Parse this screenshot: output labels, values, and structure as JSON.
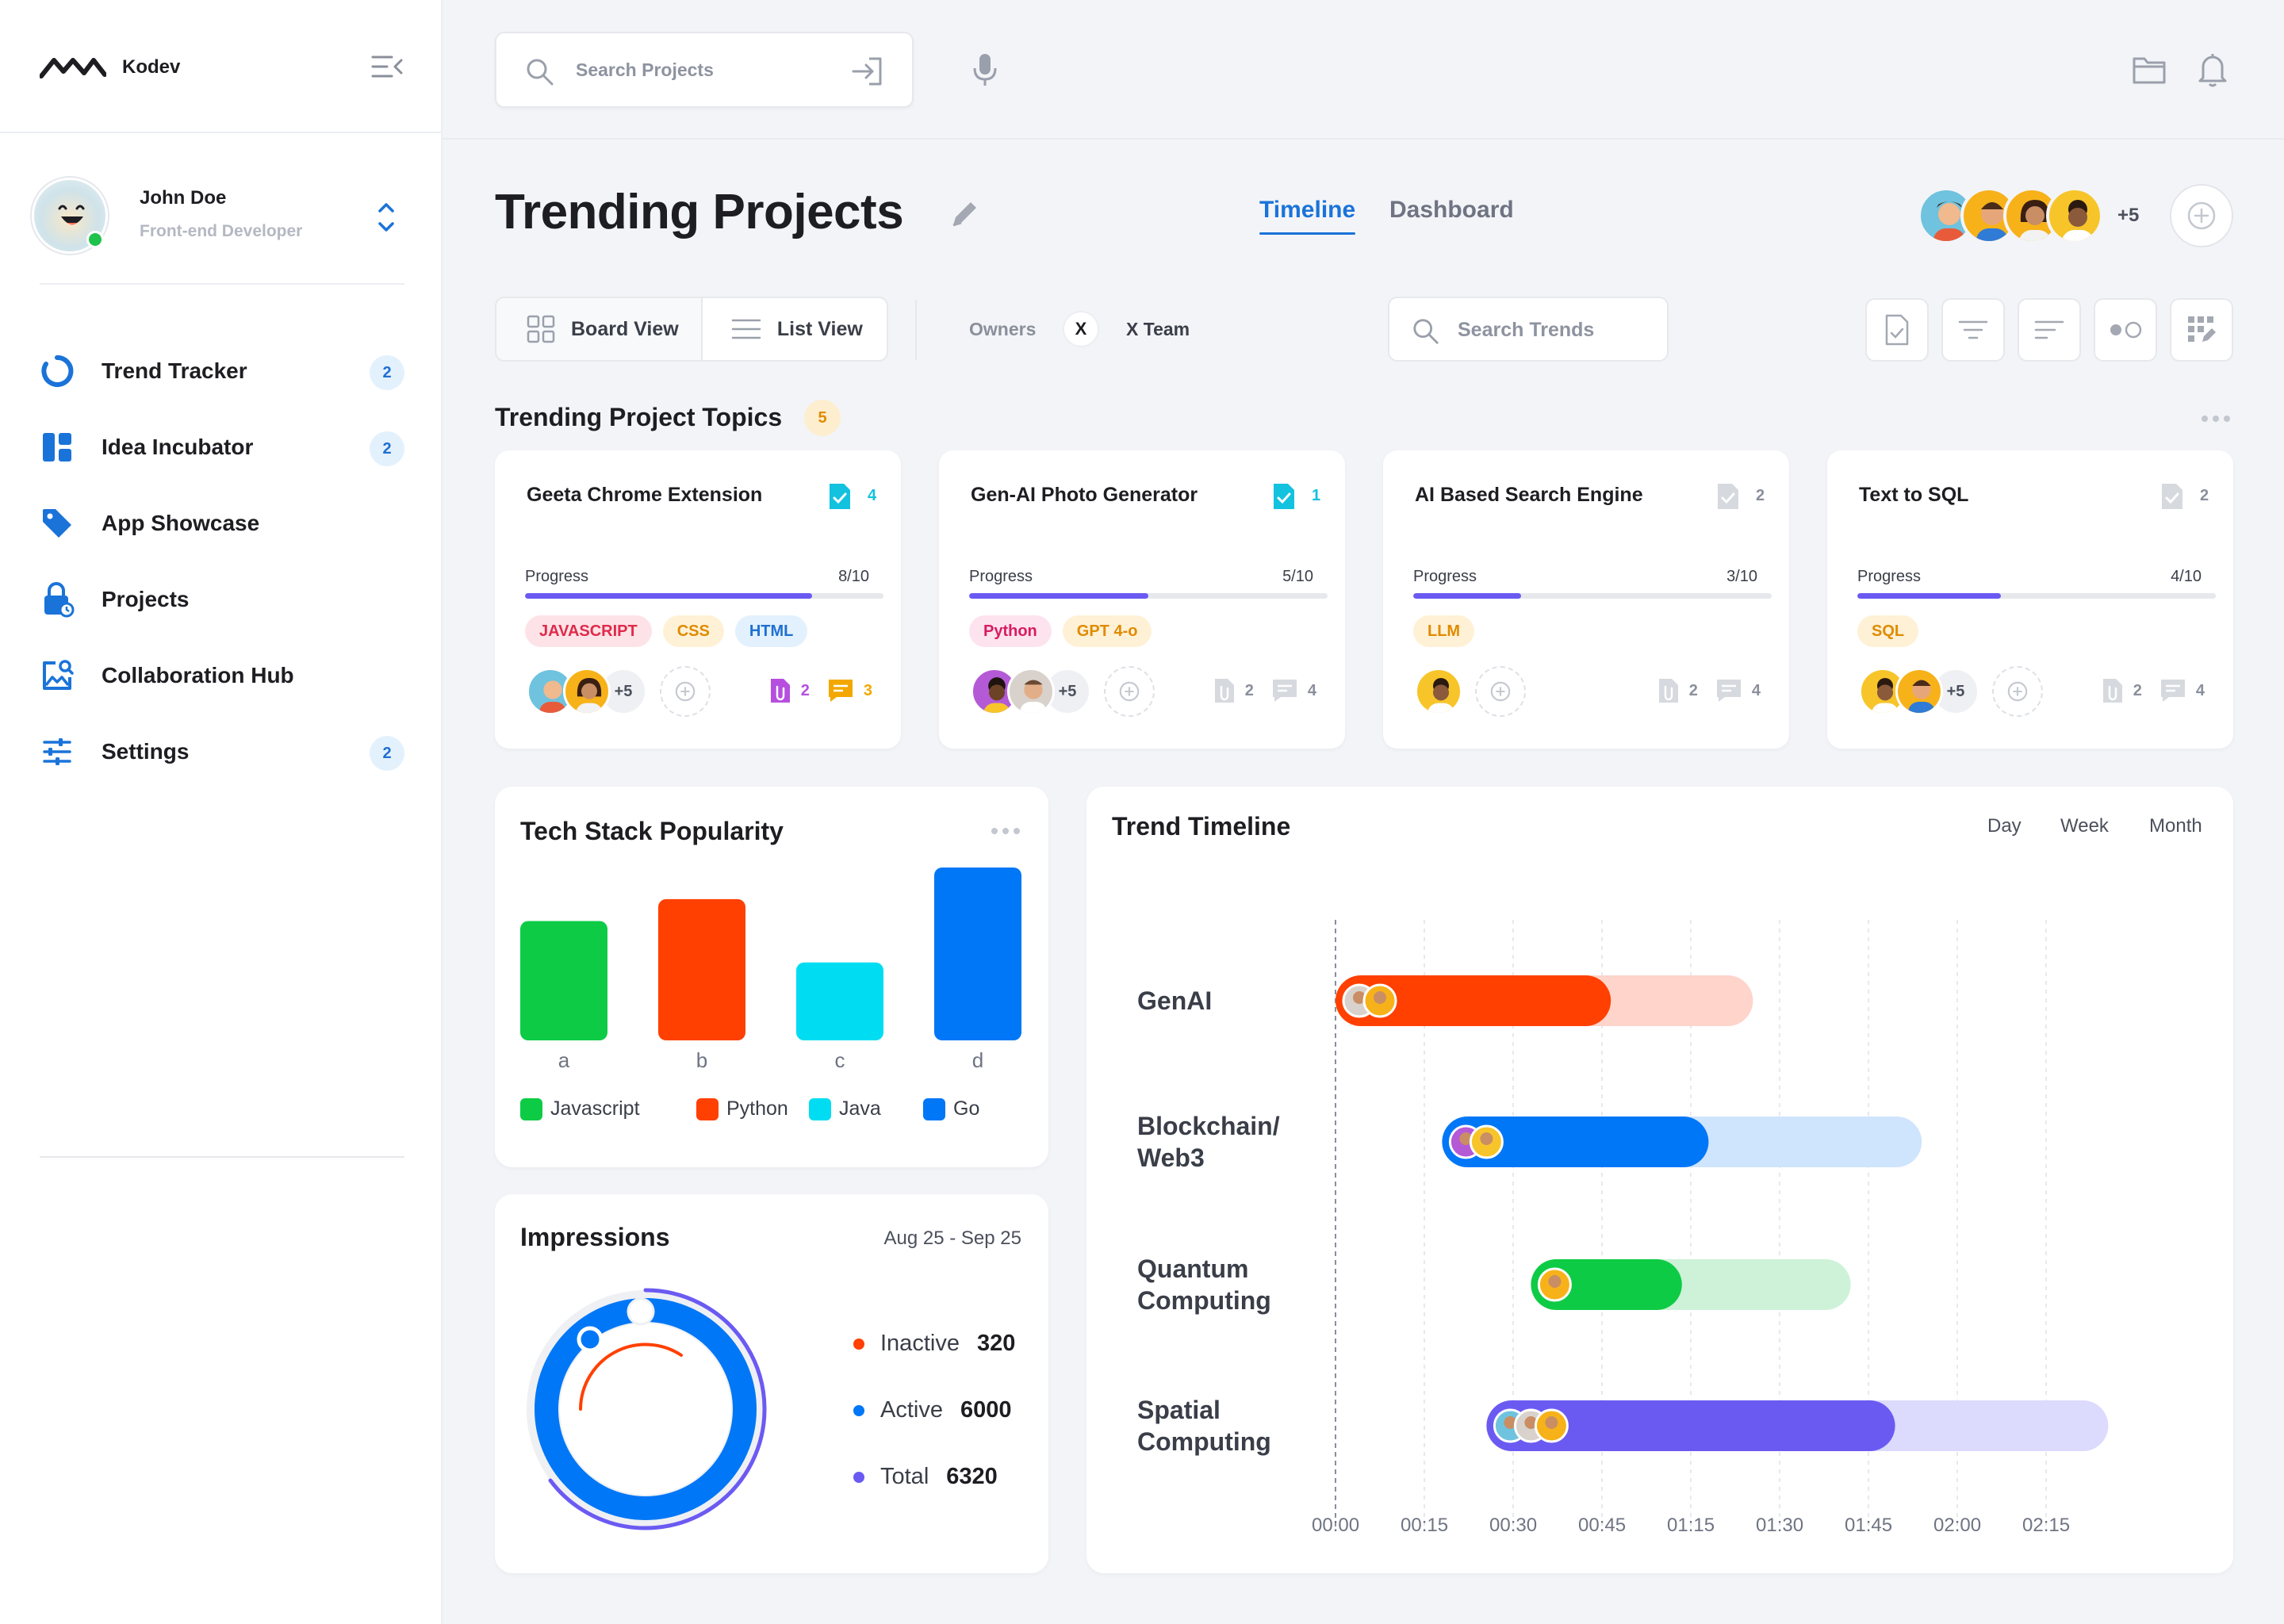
{
  "app": {
    "name": "Kodev"
  },
  "user": {
    "name": "John Doe",
    "role": "Front-end Developer"
  },
  "nav": [
    {
      "label": "Trend Tracker",
      "badge": "2",
      "icon": "refresh-icon"
    },
    {
      "label": "Idea Incubator",
      "badge": "2",
      "icon": "grid-icon"
    },
    {
      "label": "App Showcase",
      "badge": "",
      "icon": "tag-icon"
    },
    {
      "label": "Projects",
      "badge": "",
      "icon": "lock-icon"
    },
    {
      "label": "Collaboration Hub",
      "badge": "",
      "icon": "image-search-icon"
    },
    {
      "label": "Settings",
      "badge": "2",
      "icon": "sliders-icon"
    }
  ],
  "search": {
    "placeholder": "Search Projects"
  },
  "header": {
    "title": "Trending Projects",
    "tabs": [
      "Timeline",
      "Dashboard"
    ],
    "team_more": "+5"
  },
  "toolbar": {
    "board_view": "Board View",
    "list_view": "List View",
    "owners_label": "Owners",
    "owner_chip": "X",
    "owner_team": "X Team",
    "trend_search_placeholder": "Search Trends"
  },
  "topics": {
    "title": "Trending Project Topics",
    "count": "5",
    "cards": [
      {
        "title": "Geeta Chrome Extension",
        "docs": "4",
        "progress_label": "Progress",
        "progress": "8/10",
        "progress_fraction": 0.8,
        "tags": [
          "JAVASCRIPT",
          "CSS",
          "HTML"
        ],
        "more": "+5",
        "files": "2",
        "comments": "3",
        "highlight": true
      },
      {
        "title": "Gen-AI Photo Generator",
        "docs": "1",
        "progress_label": "Progress",
        "progress": "5/10",
        "progress_fraction": 0.5,
        "tags": [
          "Python",
          "GPT 4-o"
        ],
        "more": "+5",
        "files": "2",
        "comments": "4",
        "highlight": false
      },
      {
        "title": "AI Based Search Engine",
        "docs": "2",
        "progress_label": "Progress",
        "progress": "3/10",
        "progress_fraction": 0.3,
        "tags": [
          "LLM"
        ],
        "more": "",
        "files": "2",
        "comments": "4",
        "highlight": false
      },
      {
        "title": "Text to SQL",
        "docs": "2",
        "progress_label": "Progress",
        "progress": "4/10",
        "progress_fraction": 0.4,
        "tags": [
          "SQL"
        ],
        "more": "+5",
        "files": "2",
        "comments": "4",
        "highlight": false
      }
    ]
  },
  "colors": {
    "accent": "#1a73d9",
    "progress": "#6b5af2",
    "green": "#0ecb45",
    "orange": "#ff4000",
    "cyan": "#00ddf2",
    "blue": "#0077f7",
    "purple": "#6b5af2"
  },
  "tech_stack": {
    "title": "Tech Stack Popularity",
    "chart_data": {
      "type": "bar",
      "categories": [
        "a",
        "b",
        "c",
        "d"
      ],
      "values": [
        49,
        58,
        32,
        71
      ],
      "ylim": [
        0,
        71
      ],
      "legend": [
        "Javascript",
        "Python",
        "Java",
        "Go"
      ],
      "colors": [
        "#0ecb45",
        "#ff4000",
        "#00ddf2",
        "#0077f7"
      ],
      "title": "Tech Stack Popularity",
      "xlabel": "",
      "ylabel": ""
    }
  },
  "timeline": {
    "title": "Trend Timeline",
    "ranges": [
      "Day",
      "Week",
      "Month"
    ],
    "chart_data": {
      "type": "bar",
      "ticks": [
        "00:00",
        "00:15",
        "00:30",
        "00:45",
        "01:15",
        "01:30",
        "01:45",
        "02:00",
        "02:15"
      ],
      "rows": [
        {
          "label": [
            "GenAI"
          ],
          "start": 0,
          "progress_end": 3.1,
          "end": 4.7,
          "color": "#ff4000",
          "light": "#fed4cb"
        },
        {
          "label": [
            "Blockchain/",
            "Web3"
          ],
          "start": 1.2,
          "progress_end": 4.2,
          "end": 6.6,
          "color": "#0077f7",
          "light": "#cfe4fd"
        },
        {
          "label": [
            "Quantum",
            "Computing"
          ],
          "start": 2.2,
          "progress_end": 3.9,
          "end": 5.8,
          "color": "#0ecb45",
          "light": "#cdf2d8"
        },
        {
          "label": [
            "Spatial",
            "Computing"
          ],
          "start": 1.7,
          "progress_end": 6.3,
          "end": 8.7,
          "color": "#6b5af2",
          "light": "#dcdafd"
        }
      ]
    }
  },
  "impressions": {
    "title": "Impressions",
    "range": "Aug 25 - Sep 25",
    "stats": [
      {
        "label": "Inactive",
        "value": "320",
        "color": "#ff4000"
      },
      {
        "label": "Active",
        "value": "6000",
        "color": "#0077f7"
      },
      {
        "label": "Total",
        "value": "6320",
        "color": "#6b5af2"
      }
    ],
    "chart_data": {
      "type": "pie",
      "labels": [
        "Inactive",
        "Active",
        "Total"
      ],
      "values": [
        320,
        6000,
        6320
      ]
    }
  }
}
